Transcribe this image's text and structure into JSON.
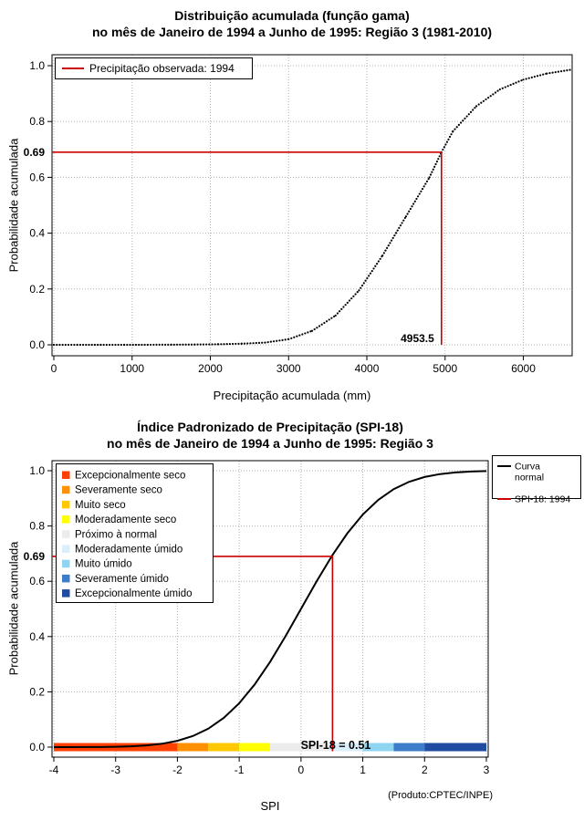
{
  "figure": {
    "bg": "#ffffff",
    "credit": "(Produto:CPTEC/INPE)"
  },
  "colors": {
    "curve": "#000000",
    "marker_red": "#cc0000",
    "grid": "#b3b3b3"
  },
  "chart_data": [
    {
      "type": "line",
      "title": "Distribuição acumulada (função gama)",
      "subtitle": "no mês de Janeiro de 1994 a Junho de 1995: Região 3 (1981-2010)",
      "xlabel": "Precipitação acumulada (mm)",
      "ylabel": "Probabilidade acumulada",
      "xlim": [
        0,
        6600
      ],
      "ylim": [
        0,
        1
      ],
      "xticks": [
        0,
        1000,
        2000,
        3000,
        4000,
        5000,
        6000
      ],
      "yticks": [
        0.0,
        0.2,
        0.4,
        0.6,
        0.8,
        1.0
      ],
      "grid": true,
      "legend": [
        {
          "label": "Precipitação observada: 1994",
          "lines": [
            "Precipitação observada: 1994"
          ],
          "color": "#cc0000"
        }
      ],
      "marker": {
        "x": 4953.5,
        "y": 0.69,
        "x_label": "4953.5",
        "y_label": "0.69",
        "color": "#cc0000"
      },
      "series": [
        {
          "name": "Distribuição gama acumulada",
          "color": "#000000",
          "style": "dots",
          "points": [
            [
              0,
              0
            ],
            [
              300,
              0
            ],
            [
              600,
              0
            ],
            [
              900,
              0.0001
            ],
            [
              1200,
              0.0002
            ],
            [
              1500,
              0.0005
            ],
            [
              1800,
              0.001
            ],
            [
              2100,
              0.002
            ],
            [
              2400,
              0.004
            ],
            [
              2700,
              0.008
            ],
            [
              3000,
              0.02
            ],
            [
              3300,
              0.05
            ],
            [
              3600,
              0.105
            ],
            [
              3900,
              0.195
            ],
            [
              4200,
              0.32
            ],
            [
              4500,
              0.46
            ],
            [
              4800,
              0.6
            ],
            [
              4953.5,
              0.69
            ],
            [
              5100,
              0.765
            ],
            [
              5400,
              0.855
            ],
            [
              5700,
              0.915
            ],
            [
              6000,
              0.95
            ],
            [
              6300,
              0.972
            ],
            [
              6600,
              0.985
            ]
          ]
        }
      ]
    },
    {
      "type": "line",
      "title": "Índice Padronizado de Precipitação (SPI-18)",
      "subtitle": "no mês de Janeiro de 1994 a Junho de 1995: Região 3",
      "xlabel": "SPI",
      "ylabel": "Probabilidade acumulada",
      "xlim": [
        -4,
        3
      ],
      "ylim": [
        0,
        1
      ],
      "xticks": [
        -4,
        -3,
        -2,
        -1,
        0,
        1,
        2,
        3
      ],
      "yticks": [
        0.0,
        0.2,
        0.4,
        0.6,
        0.8,
        1.0
      ],
      "grid": true,
      "annotation": "SPI-18 = 0.51",
      "marker": {
        "x": 0.51,
        "y": 0.69,
        "y_label": "0.69",
        "color": "#cc0000"
      },
      "legend": [
        {
          "label": "Curva normal",
          "lines": [
            "Curva",
            "normal"
          ],
          "color": "#000000"
        },
        {
          "label": "SPI-18: 1994",
          "lines": [
            "SPI-18: 1994"
          ],
          "color": "#cc0000"
        }
      ],
      "categories": [
        {
          "label": "Excepcionalmente seco",
          "color": "#ff4000"
        },
        {
          "label": "Severamente seco",
          "color": "#ff9100"
        },
        {
          "label": "Muito seco",
          "color": "#ffc800"
        },
        {
          "label": "Moderadamente seco",
          "color": "#ffff00"
        },
        {
          "label": "Próximo à normal",
          "color": "#ececec"
        },
        {
          "label": "Moderadamente úmido",
          "color": "#dbeffa"
        },
        {
          "label": "Muito úmido",
          "color": "#8fd4f0"
        },
        {
          "label": "Severamente úmido",
          "color": "#3d7cc9"
        },
        {
          "label": "Excepcionalmente úmido",
          "color": "#1f4ba0"
        }
      ],
      "colorbar": {
        "boundaries": [
          -4,
          -2,
          -1.5,
          -1,
          -0.5,
          0.5,
          1,
          1.5,
          2,
          3
        ]
      },
      "series": [
        {
          "name": "Curva normal",
          "color": "#000000",
          "style": "solid",
          "points": [
            [
              -4,
              3e-05
            ],
            [
              -3.75,
              9e-05
            ],
            [
              -3.5,
              0.00023
            ],
            [
              -3.25,
              0.00058
            ],
            [
              -3,
              0.00135
            ],
            [
              -2.75,
              0.003
            ],
            [
              -2.5,
              0.0062
            ],
            [
              -2.25,
              0.0122
            ],
            [
              -2,
              0.0228
            ],
            [
              -1.75,
              0.0401
            ],
            [
              -1.5,
              0.0668
            ],
            [
              -1.25,
              0.1056
            ],
            [
              -1,
              0.1587
            ],
            [
              -0.75,
              0.2266
            ],
            [
              -0.5,
              0.3085
            ],
            [
              -0.25,
              0.4013
            ],
            [
              0,
              0.5
            ],
            [
              0.25,
              0.5987
            ],
            [
              0.51,
              0.695
            ],
            [
              0.75,
              0.7734
            ],
            [
              1,
              0.8413
            ],
            [
              1.25,
              0.8944
            ],
            [
              1.5,
              0.9332
            ],
            [
              1.75,
              0.9599
            ],
            [
              2,
              0.9772
            ],
            [
              2.25,
              0.9878
            ],
            [
              2.5,
              0.9938
            ],
            [
              2.75,
              0.997
            ],
            [
              3,
              0.9987
            ]
          ]
        }
      ]
    }
  ]
}
